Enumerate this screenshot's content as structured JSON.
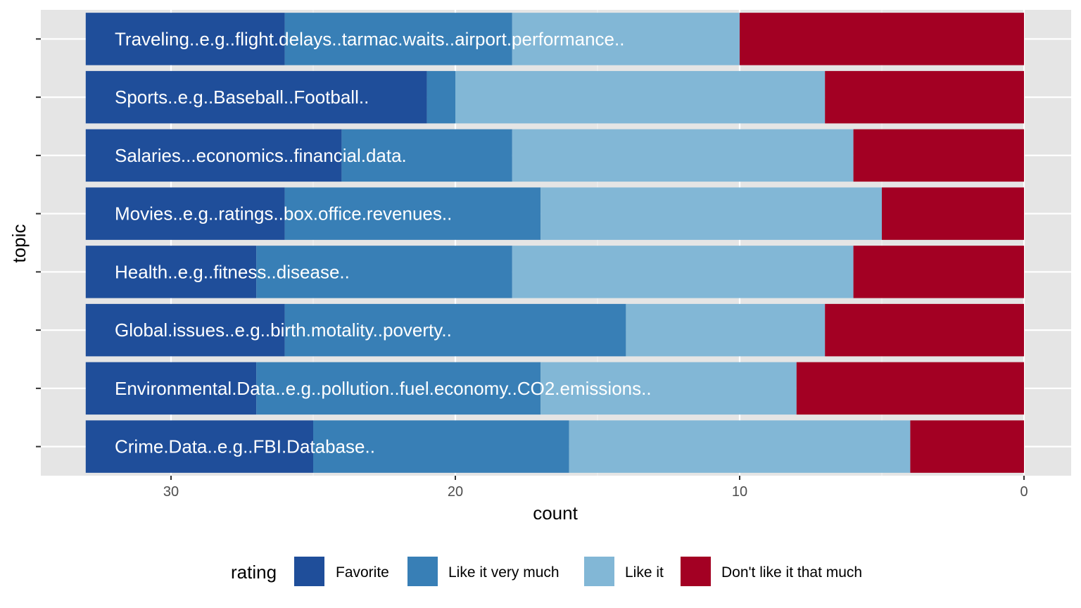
{
  "chart_data": {
    "type": "bar",
    "orientation": "horizontal",
    "stacked": true,
    "x_reversed": true,
    "xlabel": "count",
    "ylabel": "topic",
    "xlim": [
      0,
      33
    ],
    "x_ticks": [
      30,
      20,
      10,
      0
    ],
    "grid": true,
    "legend_position": "bottom",
    "legend_title": "rating",
    "categories": [
      "Traveling..e.g..flight.delays..tarmac.waits..airport.performance..",
      "Sports..e.g..Baseball..Football..",
      "Salaries...economics..financial.data.",
      "Movies..e.g..ratings..box.office.revenues..",
      "Health..e.g..fitness..disease..",
      "Global.issues..e.g..birth.motality..poverty..",
      "Environmental.Data..e.g..pollution..fuel.economy..CO2.emissions..",
      "Crime.Data..e.g..FBI.Database.."
    ],
    "series": [
      {
        "name": "Favorite",
        "color": "#1f4e9a",
        "values": [
          7,
          12,
          9,
          7,
          6,
          7,
          6,
          8
        ]
      },
      {
        "name": "Like it very much",
        "color": "#387fb6",
        "values": [
          8,
          1,
          6,
          9,
          9,
          12,
          10,
          9
        ]
      },
      {
        "name": "Like it",
        "color": "#82b7d6",
        "values": [
          8,
          13,
          12,
          12,
          12,
          7,
          9,
          12
        ]
      },
      {
        "name": "Don't like it that much",
        "color": "#a30023",
        "values": [
          10,
          7,
          6,
          5,
          6,
          7,
          8,
          4
        ]
      }
    ]
  }
}
